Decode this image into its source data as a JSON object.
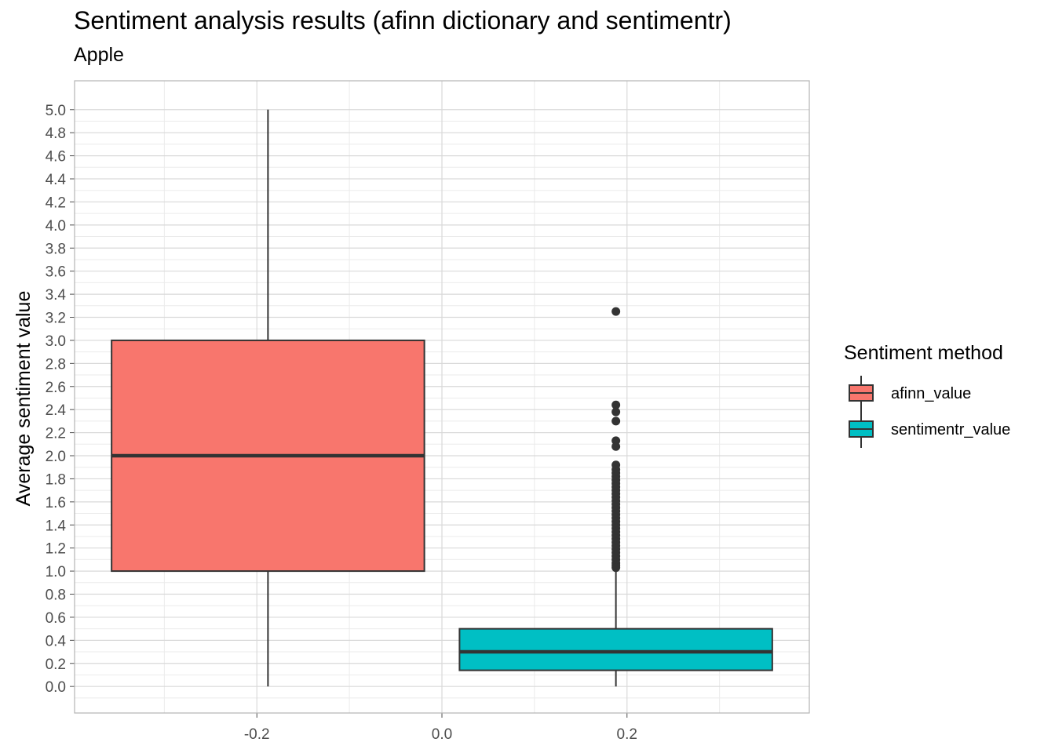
{
  "title": "Sentiment analysis results (afinn dictionary and sentimentr)",
  "subtitle": "Apple",
  "chart_data": {
    "type": "boxplot",
    "xlabel": "",
    "ylabel": "Average sentiment value",
    "xlim": [
      -0.397,
      0.397
    ],
    "ylim": [
      -0.23,
      5.25
    ],
    "x_ticks": [
      -0.2,
      0.0,
      0.2
    ],
    "x_tick_labels": [
      "-0.2",
      "0.0",
      "0.2"
    ],
    "y_ticks": [
      0.0,
      0.2,
      0.4,
      0.6,
      0.8,
      1.0,
      1.2,
      1.4,
      1.6,
      1.8,
      2.0,
      2.2,
      2.4,
      2.6,
      2.8,
      3.0,
      3.2,
      3.4,
      3.6,
      3.8,
      4.0,
      4.2,
      4.4,
      4.6,
      4.8,
      5.0
    ],
    "y_tick_labels": [
      "0.0",
      "0.2",
      "0.4",
      "0.6",
      "0.8",
      "1.0",
      "1.2",
      "1.4",
      "1.6",
      "1.8",
      "2.0",
      "2.2",
      "2.4",
      "2.6",
      "2.8",
      "3.0",
      "3.2",
      "3.4",
      "3.6",
      "3.8",
      "4.0",
      "4.2",
      "4.4",
      "4.6",
      "4.8",
      "5.0"
    ],
    "grid": true,
    "legend_position": "right",
    "legend_title": "Sentiment method",
    "series": [
      {
        "name": "afinn_value",
        "color": "#F8766D",
        "x_left": -0.357,
        "x_right": -0.019,
        "x_center": -0.188,
        "min": 0.0,
        "q1": 1.0,
        "median": 2.0,
        "q3": 3.0,
        "max": 5.0,
        "outliers": []
      },
      {
        "name": "sentimentr_value",
        "color": "#00BFC4",
        "x_left": 0.019,
        "x_right": 0.357,
        "x_center": 0.188,
        "min": 0.0,
        "q1": 0.14,
        "median": 0.3,
        "q3": 0.5,
        "max": 1.02,
        "outliers": [
          3.25,
          2.44,
          2.38,
          2.3,
          2.13,
          2.08,
          1.92,
          1.88,
          1.85,
          1.82,
          1.79,
          1.76,
          1.73,
          1.7,
          1.67,
          1.64,
          1.61,
          1.58,
          1.55,
          1.52,
          1.49,
          1.46,
          1.43,
          1.4,
          1.37,
          1.34,
          1.31,
          1.28,
          1.25,
          1.22,
          1.19,
          1.16,
          1.13,
          1.1,
          1.07,
          1.05,
          1.03
        ]
      }
    ]
  }
}
